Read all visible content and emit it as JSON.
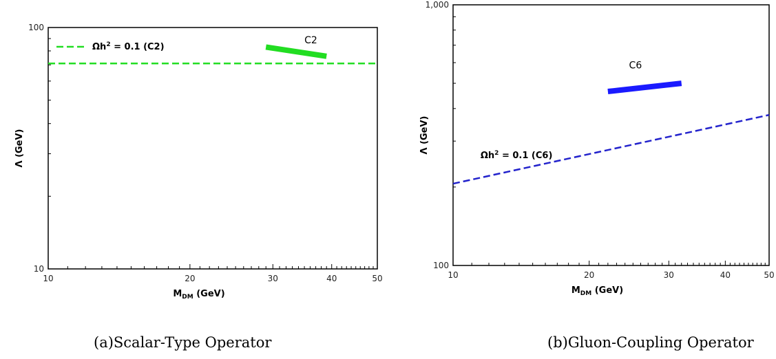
{
  "chart_data": [
    {
      "type": "line",
      "caption": "(a)Scalar-Type Operator",
      "xlabel_main": "M",
      "xlabel_sub": "DM",
      "xlabel_rest": " (GeV)",
      "ylabel": "Λ (GeV)",
      "x_scale": "log",
      "y_scale": "log",
      "xlim": [
        10,
        50
      ],
      "ylim": [
        10,
        100
      ],
      "x_ticks": [
        {
          "value": 10,
          "label": "10"
        },
        {
          "value": 20,
          "label": "20"
        },
        {
          "value": 30,
          "label": "30"
        },
        {
          "value": 40,
          "label": "40"
        },
        {
          "value": 50,
          "label": "50"
        }
      ],
      "y_ticks": [
        {
          "value": 10,
          "label": "10"
        },
        {
          "value": 100,
          "label": "100"
        }
      ],
      "series": [
        {
          "name": "C2",
          "style": "solid-band",
          "color": "#22dd22",
          "x": [
            29,
            39
          ],
          "y": [
            83,
            76
          ],
          "label_x": 35,
          "label_y": 86
        },
        {
          "name": "",
          "style": "dashed",
          "color": "#22dd22",
          "x": [
            10,
            50
          ],
          "y": [
            71,
            71
          ]
        }
      ],
      "legend": {
        "placement": "top-left",
        "entries": [
          {
            "label_main": "Ωh",
            "label_sup": "2",
            "label_rest": " = 0.1 (C2)",
            "color": "#22dd22",
            "style": "dashed"
          }
        ]
      },
      "grid": false
    },
    {
      "type": "line",
      "caption": "(b)Gluon-Coupling Operator",
      "xlabel_main": "M",
      "xlabel_sub": "DM",
      "xlabel_rest": " (GeV)",
      "ylabel": "Λ (GeV)",
      "x_scale": "log",
      "y_scale": "log",
      "xlim": [
        10,
        50
      ],
      "ylim": [
        100,
        1000
      ],
      "x_ticks": [
        {
          "value": 10,
          "label": "10"
        },
        {
          "value": 20,
          "label": "20"
        },
        {
          "value": 30,
          "label": "30"
        },
        {
          "value": 40,
          "label": "40"
        },
        {
          "value": 50,
          "label": "50"
        }
      ],
      "y_ticks": [
        {
          "value": 100,
          "label": "100"
        },
        {
          "value": 1000,
          "label": "1,000"
        }
      ],
      "series": [
        {
          "name": "C6",
          "style": "solid-band",
          "color": "#1a1aff",
          "x": [
            22,
            32
          ],
          "y": [
            465,
            500
          ],
          "label_x": 24.5,
          "label_y": 570
        },
        {
          "name": "",
          "style": "dashed",
          "color": "#2222cc",
          "x": [
            10,
            50
          ],
          "y": [
            206,
            378
          ]
        }
      ],
      "annotations": [
        {
          "label_main": "Ωh",
          "label_sup": "2",
          "label_rest": " = 0.1 (C6)",
          "x": 11.5,
          "y": 258
        }
      ],
      "grid": false
    }
  ]
}
